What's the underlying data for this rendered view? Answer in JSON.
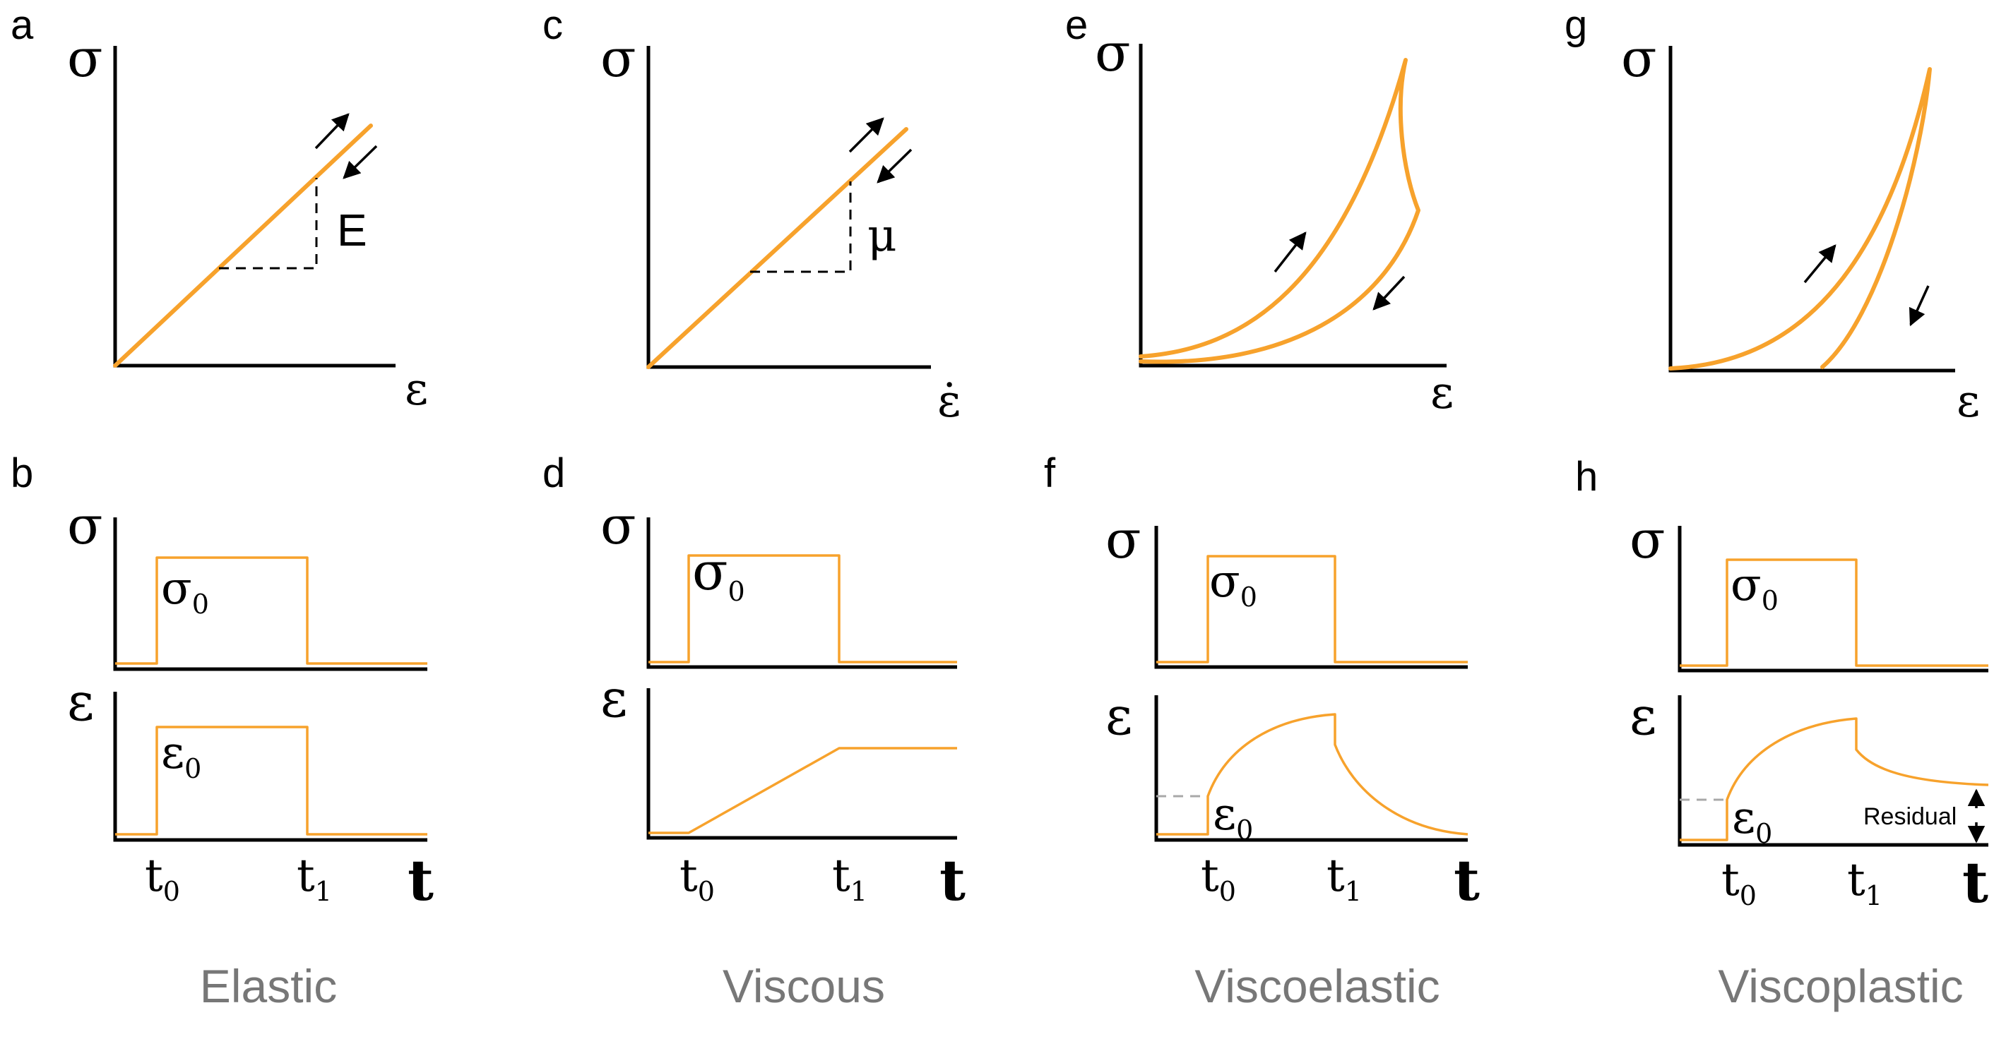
{
  "colors": {
    "curve": "#F7A22C",
    "axis": "#000000",
    "category_text": "#777777",
    "guide_dash": "#a8a8a8"
  },
  "panels": {
    "a": {
      "letter": "a",
      "y_axis": "σ",
      "x_axis": "ε",
      "slope_label": "E"
    },
    "c": {
      "letter": "c",
      "y_axis": "σ",
      "x_axis": "ε̇",
      "slope_label": "μ"
    },
    "e": {
      "letter": "e",
      "y_axis": "σ",
      "x_axis": "ε"
    },
    "g": {
      "letter": "g",
      "y_axis": "σ",
      "x_axis": "ε"
    },
    "b": {
      "letter": "b",
      "stress_axis": "σ",
      "strain_axis": "ε",
      "stress_level": "σ",
      "stress_level_sub": "0",
      "strain_level": "ε",
      "strain_level_sub": "0"
    },
    "d": {
      "letter": "d",
      "stress_axis": "σ",
      "strain_axis": "ε",
      "stress_level": "σ",
      "stress_level_sub": "0"
    },
    "f": {
      "letter": "f",
      "stress_axis": "σ",
      "strain_axis": "ε",
      "stress_level": "σ",
      "stress_level_sub": "0",
      "strain_level": "ε",
      "strain_level_sub": "0"
    },
    "h": {
      "letter": "h",
      "stress_axis": "σ",
      "strain_axis": "ε",
      "stress_level": "σ",
      "stress_level_sub": "0",
      "strain_level": "ε",
      "strain_level_sub": "0",
      "residual_label": "Residual"
    }
  },
  "time_axis": {
    "label": "t",
    "t0": "t",
    "t0_sub": "0",
    "t1": "t",
    "t1_sub": "1"
  },
  "categories": [
    "Elastic",
    "Viscous",
    "Viscoelastic",
    "Viscoplastic"
  ]
}
